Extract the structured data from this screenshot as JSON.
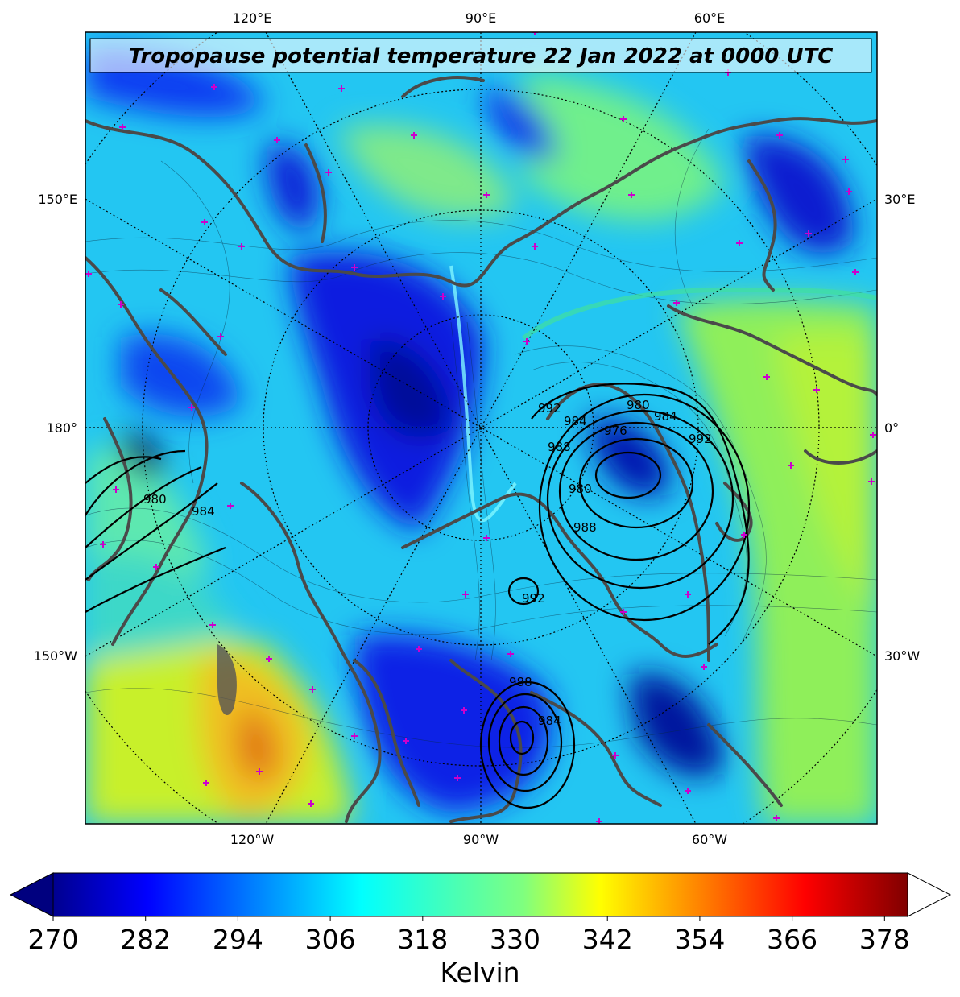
{
  "title": "Tropopause potential temperature 22 Jan 2022 at 0000 UTC",
  "map": {
    "projection": "polar stereographic (north)",
    "top_lon_labels": [
      "120°E",
      "90°E",
      "60°E"
    ],
    "bottom_lon_labels": [
      "120°W",
      "90°W",
      "60°W"
    ],
    "left_lon_labels": [
      "150°E",
      "180°",
      "150°W"
    ],
    "right_lon_labels": [
      "30°E",
      "0°",
      "30°W"
    ],
    "isobar_labels": [
      "992",
      "988",
      "984",
      "980",
      "976",
      "980",
      "984",
      "988",
      "992",
      "980",
      "984",
      "992",
      "988",
      "984"
    ],
    "colors": {
      "land_outline": "#4a4a4a",
      "isobar": "#000000",
      "marker": "#cc00cc"
    }
  },
  "colorbar": {
    "ticks": [
      "270",
      "282",
      "294",
      "306",
      "318",
      "330",
      "342",
      "354",
      "366",
      "378"
    ],
    "label": "Kelvin",
    "colormap": "jet",
    "extend": "both",
    "range": [
      270,
      381
    ]
  }
}
